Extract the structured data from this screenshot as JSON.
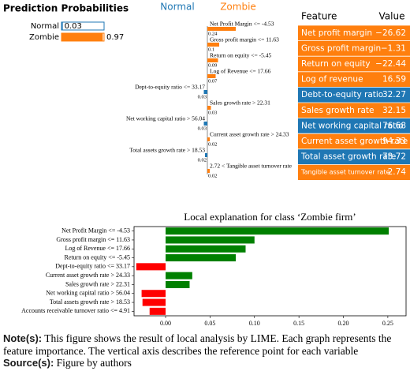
{
  "chart_data": [
    {
      "type": "prob-bar",
      "title": "Prediction Probabilities",
      "categories": [
        "Normal",
        "Zombie"
      ],
      "values": [
        0.03,
        0.97
      ],
      "colors": [
        "#1f77b4",
        "#ff7f0e"
      ],
      "xlim": [
        0,
        1
      ]
    },
    {
      "type": "lime-bar",
      "categories": [
        "Net Profit Margin <= -4.53",
        "Gross profit margin <= 11.63",
        "Return on equity <= -5.45",
        "Log of Revenue <= 17.66",
        "Dept-to-equity ratio <= 33.17",
        "Sales growth rate > 22.31",
        "Net working capital ratio > 56.04",
        "Current asset growth rate > 24.33",
        "Total assets growth rate > 18.53",
        "2.72 < Tangible asset turnover rate"
      ],
      "series": [
        {
          "name": "Normal",
          "color": "#1f77b4",
          "values": [
            null,
            null,
            null,
            null,
            0.03,
            null,
            0.03,
            null,
            0.02,
            null
          ]
        },
        {
          "name": "Zombie",
          "color": "#ff7f0e",
          "values": [
            0.24,
            0.1,
            0.09,
            0.07,
            null,
            0.03,
            null,
            0.02,
            null,
            0.02
          ]
        }
      ]
    },
    {
      "type": "hbar",
      "title": "Local explanation for class ‘Zombie firm’",
      "categories": [
        "Net Profit Margin <= -4.53",
        "Gross profit margin <= 11.63",
        "Log of Revenue <= 17.66",
        "Return on equity <= -5.45",
        "Dept-to-equity ratio <= 33.17",
        "Current asset growth rate > 24.33",
        "Sales growth rate > 22.31",
        "Net working capital ratio > 56.04",
        "Total assets growth rate > 18.53",
        "Accounts receivable turnover ratio <= 4.91"
      ],
      "values": [
        0.251,
        0.1,
        0.09,
        0.079,
        -0.033,
        0.03,
        0.027,
        -0.027,
        -0.026,
        -0.018
      ],
      "colors": {
        "positive": "#008000",
        "negative": "#ff0000"
      },
      "xlim": [
        -0.0355,
        0.2705
      ],
      "xticks": [
        {
          "value": 0,
          "label": "0.00"
        },
        {
          "value": 0.05,
          "label": "0.05"
        },
        {
          "value": 0.1,
          "label": "0.10"
        },
        {
          "value": 0.15,
          "label": "0.15"
        },
        {
          "value": 0.2,
          "label": "0.20"
        },
        {
          "value": 0.25,
          "label": "0.25"
        }
      ]
    }
  ],
  "table": {
    "header": [
      "Feature",
      "Value"
    ],
    "rows": [
      [
        "Net profit margin",
        "−26.62"
      ],
      [
        "Gross profit margin",
        "−1.31"
      ],
      [
        "Return on equity",
        "−22.44"
      ],
      [
        "Log of revenue",
        "16.59"
      ],
      [
        "Debt-to-equity ratio",
        "32.27"
      ],
      [
        "Sales growth rate",
        "32.15"
      ],
      [
        "Net working capital ratio",
        "76.68"
      ],
      [
        "Current asset growth rate",
        "94.33"
      ],
      [
        "Total asset growth rate",
        "73.72"
      ],
      [
        "Tangible asset turnover rate",
        "2.74"
      ]
    ],
    "row_colors": [
      "#ff7f0e",
      "#ff7f0e",
      "#ff7f0e",
      "#ff7f0e",
      "#1f77b4",
      "#ff7f0e",
      "#1f77b4",
      "#ff7f0e",
      "#1f77b4",
      "#ff7f0e"
    ]
  },
  "note": {
    "label": "Note(s):",
    "text": "This figure shows the result of local analysis by LIME. Each graph represents the feature importance. The vertical axis describes the reference point for each variable"
  },
  "source": {
    "label": "Source(s):",
    "text": "Figure by authors"
  }
}
